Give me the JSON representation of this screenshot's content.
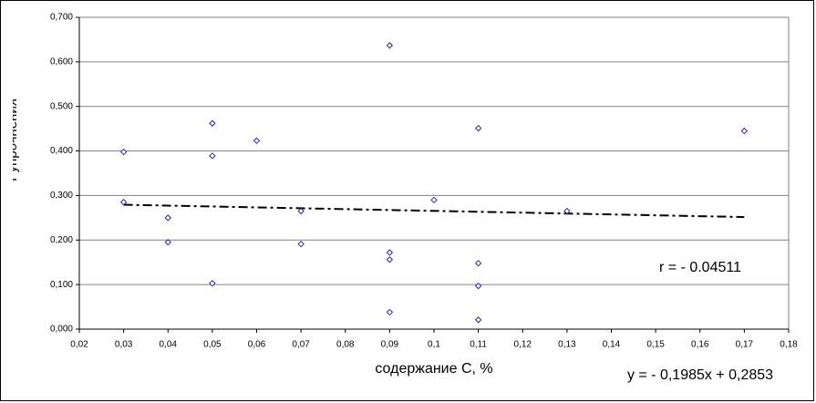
{
  "chart_data": {
    "type": "scatter",
    "y_label": "Коэффициент упрочнения",
    "x_label": "содержание С, %",
    "annotations": [
      "r = - 0.04511",
      "y = - 0,1985x + 0,2853"
    ],
    "x": [
      0.03,
      0.03,
      0.04,
      0.04,
      0.05,
      0.05,
      0.05,
      0.06,
      0.07,
      0.07,
      0.09,
      0.09,
      0.09,
      0.09,
      0.1,
      0.11,
      0.11,
      0.11,
      0.11,
      0.13,
      0.17
    ],
    "values": [
      0.398,
      0.285,
      0.25,
      0.195,
      0.462,
      0.389,
      0.103,
      0.423,
      0.265,
      0.191,
      0.637,
      0.172,
      0.156,
      0.038,
      0.29,
      0.451,
      0.148,
      0.097,
      0.021,
      0.265,
      0.445
    ],
    "color": "#2a2a9a",
    "trendline": {
      "x": [
        0.03,
        0.17
      ],
      "values": [
        0.2793,
        0.2516
      ],
      "color": "#000000"
    },
    "xlim": [
      0.02,
      0.18
    ],
    "xticks": [
      {
        "value": 0.02,
        "label": "0,02"
      },
      {
        "value": 0.03,
        "label": "0,03"
      },
      {
        "value": 0.04,
        "label": "0,04"
      },
      {
        "value": 0.05,
        "label": "0,05"
      },
      {
        "value": 0.06,
        "label": "0,06"
      },
      {
        "value": 0.07,
        "label": "0,07"
      },
      {
        "value": 0.08,
        "label": "0,08"
      },
      {
        "value": 0.09,
        "label": "0,09"
      },
      {
        "value": 0.1,
        "label": "0,1"
      },
      {
        "value": 0.11,
        "label": "0,11"
      },
      {
        "value": 0.12,
        "label": "0,12"
      },
      {
        "value": 0.13,
        "label": "0,13"
      },
      {
        "value": 0.14,
        "label": "0,14"
      },
      {
        "value": 0.15,
        "label": "0,15"
      },
      {
        "value": 0.16,
        "label": "0,16"
      },
      {
        "value": 0.17,
        "label": "0,17"
      },
      {
        "value": 0.18,
        "label": "0,18"
      }
    ],
    "ylim": [
      0,
      0.7
    ],
    "yticks": [
      {
        "value": 0,
        "label": "0,000"
      },
      {
        "value": 0.1,
        "label": "0,100"
      },
      {
        "value": 0.2,
        "label": "0,200"
      },
      {
        "value": 0.3,
        "label": "0,300"
      },
      {
        "value": 0.4,
        "label": "0,400"
      },
      {
        "value": 0.5,
        "label": "0,500"
      },
      {
        "value": 0.6,
        "label": "0,600"
      },
      {
        "value": 0.7,
        "label": "0,700"
      }
    ],
    "grid": true
  }
}
